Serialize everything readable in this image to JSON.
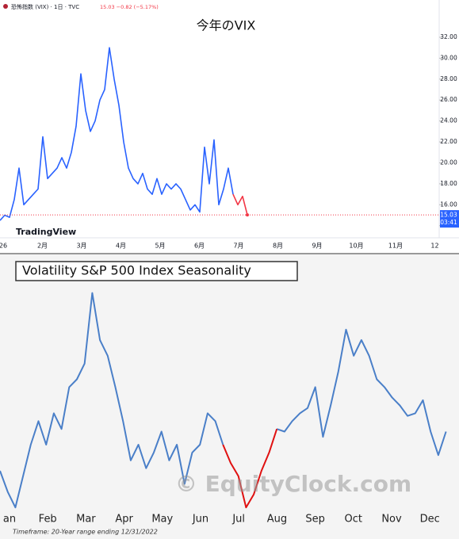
{
  "chart_data": [
    {
      "type": "line",
      "title": "今年のVIX",
      "header": "恐怖指数 (VIX) · 1日 · TVC",
      "quote": "15.03 −0.82 (−5.17%)",
      "last_value": 15.03,
      "countdown": "03:41",
      "brand": "TradingView",
      "x_labels": [
        "26",
        "2月",
        "3月",
        "4月",
        "5月",
        "6月",
        "7月",
        "8月",
        "9月",
        "10月",
        "11月",
        "12"
      ],
      "ylim": [
        13.6,
        34.8
      ],
      "yticks": [
        {
          "value": 14,
          "label": "14.00"
        },
        {
          "value": 16,
          "label": "16.00"
        },
        {
          "value": 18,
          "label": "18.00"
        },
        {
          "value": 20,
          "label": "20.00"
        },
        {
          "value": 22,
          "label": "22.00"
        },
        {
          "value": 24,
          "label": "24.00"
        },
        {
          "value": 26,
          "label": "26.00"
        },
        {
          "value": 28,
          "label": "28.00"
        },
        {
          "value": 30,
          "label": "30.00"
        },
        {
          "value": 32,
          "label": "32.00"
        }
      ],
      "series": [
        {
          "color": "#2962ff",
          "values": [
            14.5,
            15.0,
            14.8,
            16.5,
            19.5,
            16.0,
            16.5,
            17.0,
            17.5,
            22.5,
            18.5,
            19.0,
            19.5,
            20.5,
            19.5,
            21.0,
            23.5,
            28.5,
            25.0,
            23.0,
            24.0,
            26.0,
            27.0,
            31.0,
            28.0,
            25.5,
            22.0,
            19.5,
            18.5,
            18.0,
            19.0,
            17.5,
            17.0,
            18.5,
            17.0,
            18.0,
            17.5,
            18.0,
            17.5,
            16.5,
            15.5,
            16.0,
            15.3,
            21.5,
            18.0,
            22.2,
            16.0,
            17.5,
            19.5,
            17.0,
            null,
            null,
            null
          ]
        },
        {
          "color": "#f23645",
          "values": [
            null,
            null,
            null,
            null,
            null,
            null,
            null,
            null,
            null,
            null,
            null,
            null,
            null,
            null,
            null,
            null,
            null,
            null,
            null,
            null,
            null,
            null,
            null,
            null,
            null,
            null,
            null,
            null,
            null,
            null,
            null,
            null,
            null,
            null,
            null,
            null,
            null,
            null,
            null,
            null,
            null,
            null,
            null,
            null,
            null,
            null,
            null,
            null,
            null,
            17.0,
            16.0,
            16.8,
            15.03
          ]
        }
      ]
    },
    {
      "type": "line",
      "title": "Volatility S&P 500 Index Seasonality",
      "watermark": "© EquityClock.com",
      "footnote": "Timeframe: 20-Year range ending 12/31/2022",
      "x_labels": [
        "an",
        "Feb",
        "Mar",
        "Apr",
        "May",
        "Jun",
        "Jul",
        "Aug",
        "Sep",
        "Oct",
        "Nov",
        "Dec"
      ],
      "ylim": [
        0,
        100
      ],
      "series": [
        {
          "color": "#4a7fc8",
          "values": [
            20,
            12,
            6,
            18,
            30,
            39,
            30,
            42,
            36,
            52,
            55,
            61,
            88,
            70,
            64,
            52,
            39,
            24,
            30,
            21,
            27,
            35,
            24,
            30,
            15,
            27,
            30,
            42,
            39,
            30,
            null,
            null,
            null,
            null,
            null,
            null,
            36,
            35,
            39,
            42,
            44,
            52,
            33,
            45,
            58,
            74,
            64,
            70,
            64,
            55,
            52,
            48,
            45,
            41,
            42,
            47,
            35,
            26,
            35
          ]
        },
        {
          "color": "#e01010",
          "values": [
            null,
            null,
            null,
            null,
            null,
            null,
            null,
            null,
            null,
            null,
            null,
            null,
            null,
            null,
            null,
            null,
            null,
            null,
            null,
            null,
            null,
            null,
            null,
            null,
            null,
            null,
            null,
            null,
            null,
            30,
            23,
            18,
            6,
            11,
            20,
            27,
            36,
            null,
            null,
            null,
            null,
            null,
            null,
            null,
            null,
            null,
            null,
            null,
            null,
            null,
            null,
            null,
            null,
            null,
            null,
            null,
            null,
            null,
            null
          ]
        }
      ]
    }
  ]
}
